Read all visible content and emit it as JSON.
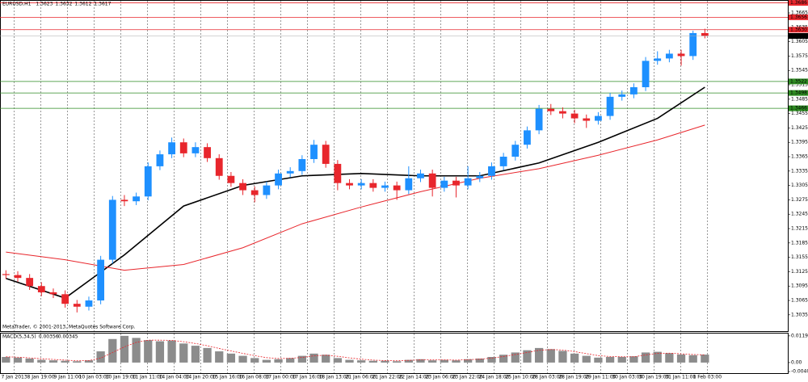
{
  "chart_data": {
    "type": "candlestick",
    "symbol": "EURUSD,H1",
    "footer": "MetaTrader, © 2001-2013, MetaQuotes Software Corp.",
    "up_color": "#1e90ff",
    "down_color": "#e8262c",
    "xlim": [
      -0.5,
      66
    ],
    "ylim": [
      1.3001,
      1.3692
    ],
    "yticks": [
      1.3035,
      1.3065,
      1.3095,
      1.3125,
      1.3155,
      1.3185,
      1.3215,
      1.3245,
      1.3275,
      1.3305,
      1.3335,
      1.3365,
      1.3395,
      1.3425,
      1.3455,
      1.3485,
      1.3515,
      1.3545,
      1.3575,
      1.3605,
      1.3635,
      1.3665
    ],
    "xticks": [
      {
        "value": 0.7,
        "label": "7 Jan 2013"
      },
      {
        "value": 2.95,
        "label": "8 Jan 19:00"
      },
      {
        "value": 5.2,
        "label": "9 Jan 11:00"
      },
      {
        "value": 7.45,
        "label": "10 Jan 03:00"
      },
      {
        "value": 9.7,
        "label": "10 Jan 19:00"
      },
      {
        "value": 11.95,
        "label": "11 Jan 11:00"
      },
      {
        "value": 14.2,
        "label": "14 Jan 04:00"
      },
      {
        "value": 16.45,
        "label": "14 Jan 20:00"
      },
      {
        "value": 18.7,
        "label": "15 Jan 16:00"
      },
      {
        "value": 20.95,
        "label": "16 Jan 08:00"
      },
      {
        "value": 23.2,
        "label": "17 Jan 00:00"
      },
      {
        "value": 25.45,
        "label": "17 Jan 16:00"
      },
      {
        "value": 27.7,
        "label": "18 Jan 13:00"
      },
      {
        "value": 29.95,
        "label": "21 Jan 06:00"
      },
      {
        "value": 32.2,
        "label": "21 Jan 22:00"
      },
      {
        "value": 34.45,
        "label": "22 Jan 14:00"
      },
      {
        "value": 36.7,
        "label": "23 Jan 06:00"
      },
      {
        "value": 38.95,
        "label": "23 Jan 22:00"
      },
      {
        "value": 41.2,
        "label": "24 Jan 18:00"
      },
      {
        "value": 43.45,
        "label": "25 Jan 10:00"
      },
      {
        "value": 45.7,
        "label": "28 Jan 03:00"
      },
      {
        "value": 47.95,
        "label": "28 Jan 19:00"
      },
      {
        "value": 50.2,
        "label": "29 Jan 11:00"
      },
      {
        "value": 52.45,
        "label": "30 Jan 03:00"
      },
      {
        "value": 54.7,
        "label": "30 Jan 19:00"
      },
      {
        "value": 56.95,
        "label": "31 Jan 11:00"
      },
      {
        "value": 59.2,
        "label": "1 Feb 03:00"
      }
    ],
    "candles": [
      [
        1.312,
        1.3128,
        1.311,
        1.3118
      ],
      [
        1.3118,
        1.3126,
        1.3104,
        1.3112
      ],
      [
        1.3112,
        1.312,
        1.3087,
        1.3095
      ],
      [
        1.3095,
        1.3103,
        1.3074,
        1.3082
      ],
      [
        1.3082,
        1.309,
        1.307,
        1.3078
      ],
      [
        1.3078,
        1.3086,
        1.305,
        1.3058
      ],
      [
        1.3058,
        1.3066,
        1.304,
        1.3052
      ],
      [
        1.3052,
        1.3073,
        1.3044,
        1.3065
      ],
      [
        1.3065,
        1.3158,
        1.3057,
        1.315
      ],
      [
        1.315,
        1.3283,
        1.3142,
        1.3275
      ],
      [
        1.3275,
        1.3285,
        1.3262,
        1.3272
      ],
      [
        1.3272,
        1.329,
        1.3264,
        1.3282
      ],
      [
        1.3282,
        1.3353,
        1.3274,
        1.3345
      ],
      [
        1.3345,
        1.3378,
        1.3337,
        1.337
      ],
      [
        1.337,
        1.3405,
        1.3362,
        1.3395
      ],
      [
        1.3395,
        1.3403,
        1.3364,
        1.3372
      ],
      [
        1.3372,
        1.3395,
        1.3364,
        1.3385
      ],
      [
        1.3385,
        1.3393,
        1.3354,
        1.3362
      ],
      [
        1.3362,
        1.337,
        1.3317,
        1.3325
      ],
      [
        1.3325,
        1.3333,
        1.3302,
        1.331
      ],
      [
        1.331,
        1.3318,
        1.3285,
        1.3295
      ],
      [
        1.3295,
        1.3303,
        1.327,
        1.3285
      ],
      [
        1.3285,
        1.3313,
        1.3277,
        1.3305
      ],
      [
        1.3305,
        1.3338,
        1.3297,
        1.333
      ],
      [
        1.333,
        1.3343,
        1.3322,
        1.3335
      ],
      [
        1.3335,
        1.3368,
        1.3327,
        1.336
      ],
      [
        1.336,
        1.34,
        1.3352,
        1.339
      ],
      [
        1.339,
        1.3398,
        1.3342,
        1.335
      ],
      [
        1.335,
        1.3358,
        1.3295,
        1.331
      ],
      [
        1.331,
        1.3318,
        1.3297,
        1.3305
      ],
      [
        1.3305,
        1.3318,
        1.3297,
        1.331
      ],
      [
        1.331,
        1.3318,
        1.3292,
        1.33
      ],
      [
        1.33,
        1.3313,
        1.3292,
        1.3305
      ],
      [
        1.3305,
        1.3313,
        1.3275,
        1.3295
      ],
      [
        1.3295,
        1.3345,
        1.3287,
        1.332
      ],
      [
        1.332,
        1.3338,
        1.3312,
        1.333
      ],
      [
        1.333,
        1.3338,
        1.3282,
        1.33
      ],
      [
        1.33,
        1.3323,
        1.3292,
        1.3315
      ],
      [
        1.3315,
        1.3323,
        1.328,
        1.3305
      ],
      [
        1.3305,
        1.3345,
        1.3297,
        1.332
      ],
      [
        1.332,
        1.3333,
        1.3312,
        1.3325
      ],
      [
        1.3325,
        1.3353,
        1.3317,
        1.3345
      ],
      [
        1.3345,
        1.3373,
        1.3337,
        1.3365
      ],
      [
        1.3365,
        1.3398,
        1.3357,
        1.339
      ],
      [
        1.339,
        1.3428,
        1.3382,
        1.342
      ],
      [
        1.342,
        1.3473,
        1.3412,
        1.3465
      ],
      [
        1.3465,
        1.3475,
        1.3452,
        1.346
      ],
      [
        1.346,
        1.3468,
        1.3445,
        1.3455
      ],
      [
        1.3455,
        1.3463,
        1.3435,
        1.3445
      ],
      [
        1.3445,
        1.3453,
        1.3425,
        1.344
      ],
      [
        1.344,
        1.3458,
        1.3432,
        1.345
      ],
      [
        1.345,
        1.3498,
        1.3442,
        1.349
      ],
      [
        1.349,
        1.3503,
        1.3482,
        1.3495
      ],
      [
        1.3495,
        1.3518,
        1.3487,
        1.351
      ],
      [
        1.351,
        1.3573,
        1.3502,
        1.3565
      ],
      [
        1.3565,
        1.3585,
        1.3557,
        1.357
      ],
      [
        1.357,
        1.3588,
        1.3562,
        1.358
      ],
      [
        1.358,
        1.3588,
        1.3555,
        1.3575
      ],
      [
        1.3575,
        1.3628,
        1.3567,
        1.3623
      ],
      [
        1.3623,
        1.3632,
        1.3612,
        1.3617
      ]
    ],
    "series": [
      {
        "color": "#000000",
        "x": [
          0,
          5,
          10,
          15,
          20,
          25,
          30,
          35,
          40,
          45,
          50,
          55,
          59
        ],
        "values": [
          1.3111,
          1.307,
          1.316,
          1.3262,
          1.3305,
          1.3325,
          1.333,
          1.3325,
          1.3325,
          1.3352,
          1.3395,
          1.3445,
          1.351
        ]
      },
      {
        "color": "#e8262c",
        "x": [
          0,
          5,
          10,
          15,
          20,
          25,
          30,
          35,
          40,
          45,
          50,
          55,
          59
        ],
        "values": [
          1.3166,
          1.315,
          1.3128,
          1.314,
          1.3175,
          1.3225,
          1.326,
          1.3292,
          1.332,
          1.334,
          1.3368,
          1.34,
          1.3431
        ]
      }
    ],
    "levels": [
      {
        "color": "#e8262c",
        "value": 1.3686
      },
      {
        "color": "#e8262c",
        "value": 1.3656
      },
      {
        "color": "#e8262c",
        "value": {
          "value": 1.363,
          "label": "1.3630"
        }
      },
      {
        "color": "#2e8b22",
        "value": 1.3522
      },
      {
        "color": "#2e8b22",
        "value": 1.3498
      },
      {
        "color": "#2e8b22",
        "value": 1.3466
      }
    ],
    "macd": {
      "label": "MACD(5,34,5)",
      "ylim": [
        -0.0047,
        0.0133
      ],
      "yticks": [
        0.0119,
        {
          "value": 0,
          "label": "0.00"
        },
        {
          "value": -0.004,
          "label": "-0.0040"
        }
      ],
      "histogram": [
        0.0025,
        0.0022,
        0.0018,
        0.0012,
        0.001,
        0.0008,
        0.0006,
        0.001,
        0.005,
        0.0105,
        0.0119,
        0.011,
        0.01,
        0.0095,
        0.0098,
        0.0085,
        0.0075,
        0.0065,
        0.005,
        0.004,
        0.003,
        0.002,
        0.0012,
        0.0015,
        0.002,
        0.003,
        0.004,
        0.0035,
        0.002,
        0.0012,
        0.001,
        0.0008,
        0.0008,
        0.0006,
        0.0012,
        0.0015,
        0.001,
        0.0012,
        0.001,
        0.0015,
        0.0018,
        0.0025,
        0.0035,
        0.0045,
        0.0055,
        0.0065,
        0.006,
        0.0052,
        0.004,
        0.003,
        0.0022,
        0.0025,
        0.0025,
        0.0028,
        0.0045,
        0.0048,
        0.0042,
        0.0036,
        0.0033,
        0.00356
      ],
      "signal": [
        0.0026,
        0.0024,
        0.0021,
        0.0017,
        0.0014,
        0.0011,
        0.0008,
        0.0009,
        0.002,
        0.0045,
        0.007,
        0.009,
        0.01,
        0.01,
        0.0099,
        0.0093,
        0.0085,
        0.0075,
        0.0063,
        0.0052,
        0.0041,
        0.0031,
        0.0022,
        0.0018,
        0.0019,
        0.0023,
        0.003,
        0.0033,
        0.0028,
        0.0021,
        0.0015,
        0.0011,
        0.0009,
        0.0008,
        0.001,
        0.0012,
        0.0012,
        0.0012,
        0.0011,
        0.0013,
        0.0015,
        0.002,
        0.0027,
        0.0036,
        0.0045,
        0.0055,
        0.0058,
        0.0056,
        0.0049,
        0.004,
        0.0031,
        0.0027,
        0.0026,
        0.0026,
        0.0034,
        0.0041,
        0.0042,
        0.0039,
        0.0036,
        0.00345
      ]
    }
  }
}
